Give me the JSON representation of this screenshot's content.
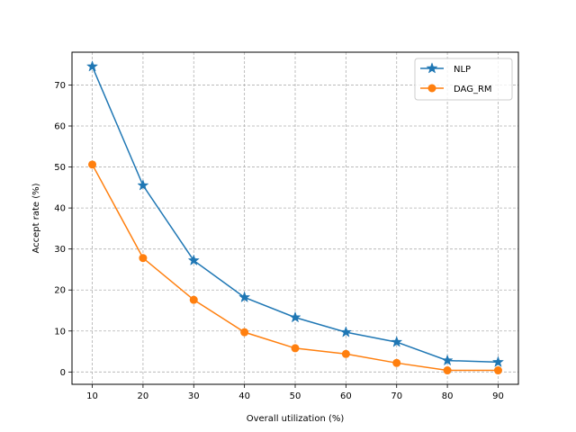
{
  "chart_data": {
    "type": "line",
    "title": "",
    "xlabel": "Overall utilization (%)",
    "ylabel": "Accept rate (%)",
    "x": [
      10,
      20,
      30,
      40,
      50,
      60,
      70,
      80,
      90
    ],
    "xlim": [
      6,
      94
    ],
    "ylim": [
      -3,
      78
    ],
    "xticks": [
      10,
      20,
      30,
      40,
      50,
      60,
      70,
      80,
      90
    ],
    "yticks": [
      0,
      10,
      20,
      30,
      40,
      50,
      60,
      70
    ],
    "grid": true,
    "legend_position": "upper right",
    "series": [
      {
        "name": "NLP",
        "marker": "star",
        "color": "#1f77b4",
        "values": [
          74.5,
          45.5,
          27.2,
          18.2,
          13.3,
          9.7,
          7.3,
          2.8,
          2.4
        ]
      },
      {
        "name": "DAG_RM",
        "marker": "circle",
        "color": "#ff7f0e",
        "values": [
          50.6,
          27.8,
          17.6,
          9.7,
          5.8,
          4.4,
          2.2,
          0.4,
          0.4
        ]
      }
    ]
  }
}
